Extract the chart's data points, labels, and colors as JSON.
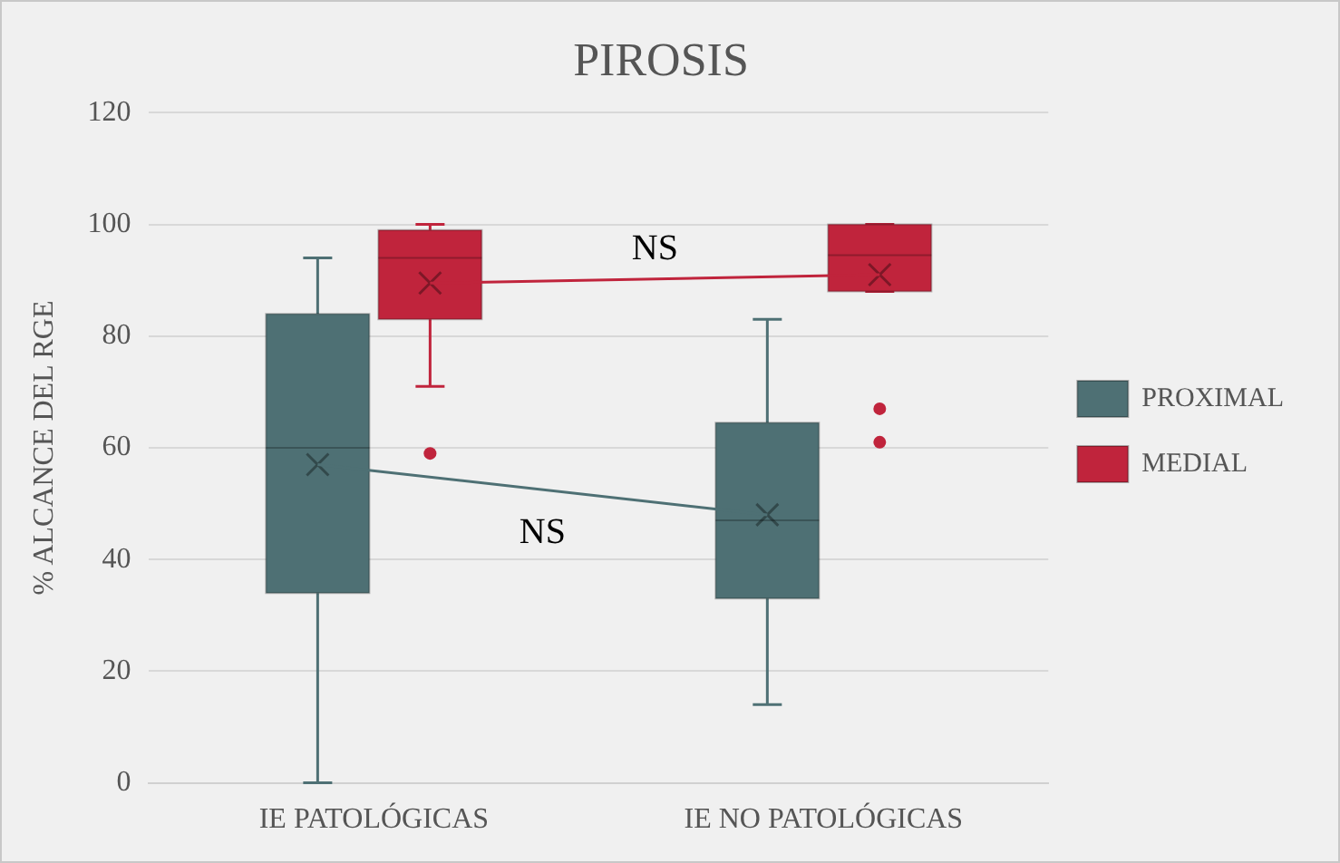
{
  "chart_data": {
    "type": "box",
    "title": "PIROSIS",
    "ylabel": "% ALCANCE DEL RGE",
    "categories": [
      "IE PATOLÓGICAS",
      "IE NO PATOLÓGICAS"
    ],
    "series": [
      {
        "name": "PROXIMAL",
        "color": "#4e7074",
        "boxes": [
          {
            "low": 0,
            "q1": 34,
            "median": 60,
            "q3": 84,
            "high": 94,
            "mean": 57
          },
          {
            "low": 14,
            "q1": 33,
            "median": 47,
            "q3": 64.5,
            "high": 83,
            "mean": 48
          }
        ]
      },
      {
        "name": "MEDIAL",
        "color": "#c0243c",
        "boxes": [
          {
            "low": 71,
            "q1": 83,
            "median": 94,
            "q3": 99,
            "high": 100,
            "mean": 89.5,
            "outliers": [
              59
            ]
          },
          {
            "low": 88,
            "q1": 88,
            "median": 94.5,
            "q3": 100,
            "high": 100,
            "mean": 91,
            "outliers": [
              67,
              61
            ]
          }
        ]
      },
      {
        "type": "line",
        "color": "#4e7074",
        "values": [
          57,
          48
        ]
      },
      {
        "type": "line",
        "color": "#c0243c",
        "values": [
          89.5,
          91
        ]
      }
    ],
    "ylim": [
      0,
      120
    ],
    "yticks": [
      0,
      20,
      40,
      60,
      80,
      100,
      120
    ],
    "grid": "y",
    "legend": "right",
    "annotations": [
      "NS",
      "NS"
    ]
  }
}
